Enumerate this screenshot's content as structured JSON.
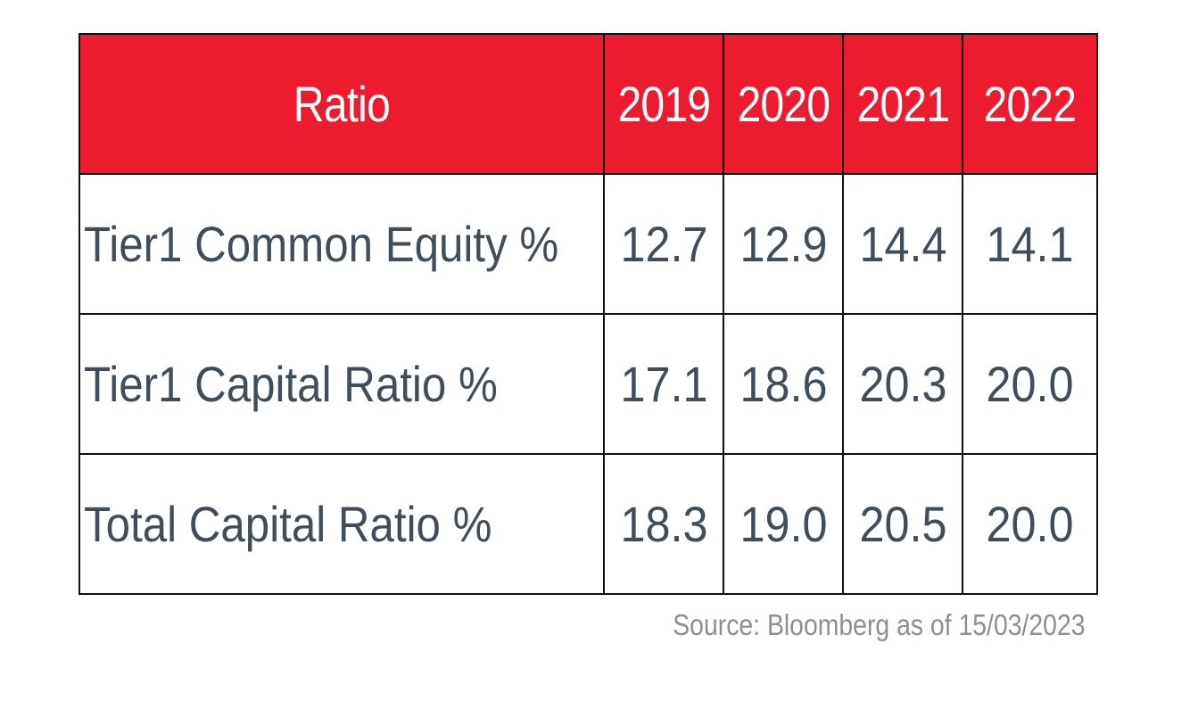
{
  "chart_data": {
    "type": "table",
    "header": {
      "label": "Ratio",
      "years": [
        "2019",
        "2020",
        "2021",
        "2022"
      ]
    },
    "rows": [
      {
        "label": "Tier1 Common Equity %",
        "values": [
          "12.7",
          "12.9",
          "14.4",
          "14.1"
        ]
      },
      {
        "label": "Tier1 Capital Ratio %",
        "values": [
          "17.1",
          "18.6",
          "20.3",
          "20.0"
        ]
      },
      {
        "label": "Total Capital Ratio %",
        "values": [
          "18.3",
          "19.0",
          "20.5",
          "20.0"
        ]
      }
    ],
    "source": "Source: Bloomberg as of 15/03/2023"
  },
  "colors": {
    "header_background": "#ed1b2e",
    "header_text": "#ffffff",
    "body_text": "#3f4e5a",
    "source_text": "#8a8f94",
    "border": "#111111"
  }
}
